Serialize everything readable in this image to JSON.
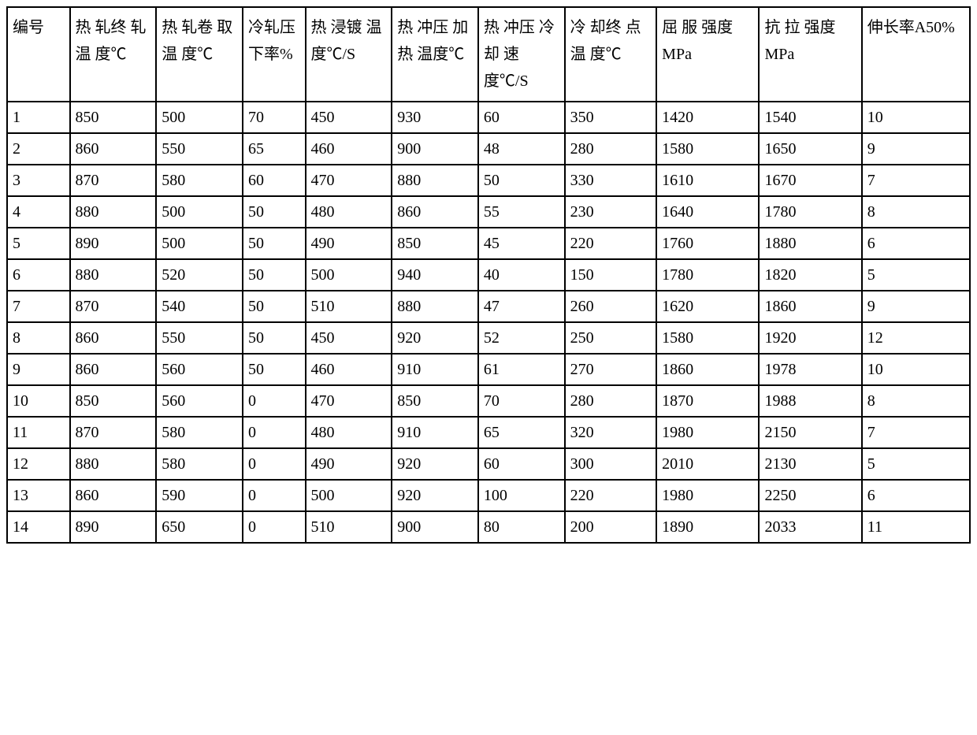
{
  "table": {
    "type": "table",
    "background_color": "#ffffff",
    "border_color": "#000000",
    "border_width": 2,
    "font_family": "SimSun",
    "header_fontsize": 20,
    "cell_fontsize": 20,
    "columns": [
      {
        "label": "编号",
        "width_pct": 5.8,
        "align": "left"
      },
      {
        "label": "热 轧终 轧温 度℃",
        "width_pct": 8,
        "align": "left"
      },
      {
        "label": "热 轧卷 取温 度℃",
        "width_pct": 8,
        "align": "left"
      },
      {
        "label": "冷轧压下率%",
        "width_pct": 5.8,
        "align": "left"
      },
      {
        "label": "热 浸镀 温度℃/S",
        "width_pct": 8,
        "align": "left"
      },
      {
        "label": "热 冲压 加热 温度℃",
        "width_pct": 8,
        "align": "left"
      },
      {
        "label": "热 冲压 冷却 速度℃/S",
        "width_pct": 8,
        "align": "left"
      },
      {
        "label": "冷 却终 点温 度℃",
        "width_pct": 8.5,
        "align": "left"
      },
      {
        "label": "屈 服 强度 MPa",
        "width_pct": 9.5,
        "align": "left"
      },
      {
        "label": "抗 拉 强度 MPa",
        "width_pct": 9.5,
        "align": "left"
      },
      {
        "label": "伸长率A50%",
        "width_pct": 10,
        "align": "left"
      }
    ],
    "rows": [
      [
        "1",
        "850",
        "500",
        "70",
        "450",
        "930",
        "60",
        "350",
        "1420",
        "1540",
        "10"
      ],
      [
        "2",
        "860",
        "550",
        "65",
        "460",
        "900",
        "48",
        "280",
        "1580",
        "1650",
        "9"
      ],
      [
        "3",
        "870",
        "580",
        "60",
        "470",
        "880",
        "50",
        "330",
        "1610",
        "1670",
        "7"
      ],
      [
        "4",
        "880",
        "500",
        "50",
        "480",
        "860",
        "55",
        "230",
        "1640",
        "1780",
        "8"
      ],
      [
        "5",
        "890",
        "500",
        "50",
        "490",
        "850",
        "45",
        "220",
        "1760",
        "1880",
        "6"
      ],
      [
        "6",
        "880",
        "520",
        "50",
        "500",
        "940",
        "40",
        "150",
        "1780",
        "1820",
        "5"
      ],
      [
        "7",
        "870",
        "540",
        "50",
        "510",
        "880",
        "47",
        "260",
        "1620",
        "1860",
        "9"
      ],
      [
        "8",
        "860",
        "550",
        "50",
        "450",
        "920",
        "52",
        "250",
        "1580",
        "1920",
        "12"
      ],
      [
        "9",
        "860",
        "560",
        "50",
        "460",
        "910",
        "61",
        "270",
        "1860",
        "1978",
        "10"
      ],
      [
        "10",
        "850",
        "560",
        "0",
        "470",
        "850",
        "70",
        "280",
        "1870",
        "1988",
        "8"
      ],
      [
        "11",
        "870",
        "580",
        "0",
        "480",
        "910",
        "65",
        "320",
        "1980",
        "2150",
        "7"
      ],
      [
        "12",
        "880",
        "580",
        "0",
        "490",
        "920",
        "60",
        "300",
        "2010",
        "2130",
        "5"
      ],
      [
        "13",
        "860",
        "590",
        "0",
        "500",
        "920",
        "100",
        "220",
        "1980",
        "2250",
        "6"
      ],
      [
        "14",
        "890",
        "650",
        "0",
        "510",
        "900",
        "80",
        "200",
        "1890",
        "2033",
        "11"
      ]
    ]
  }
}
